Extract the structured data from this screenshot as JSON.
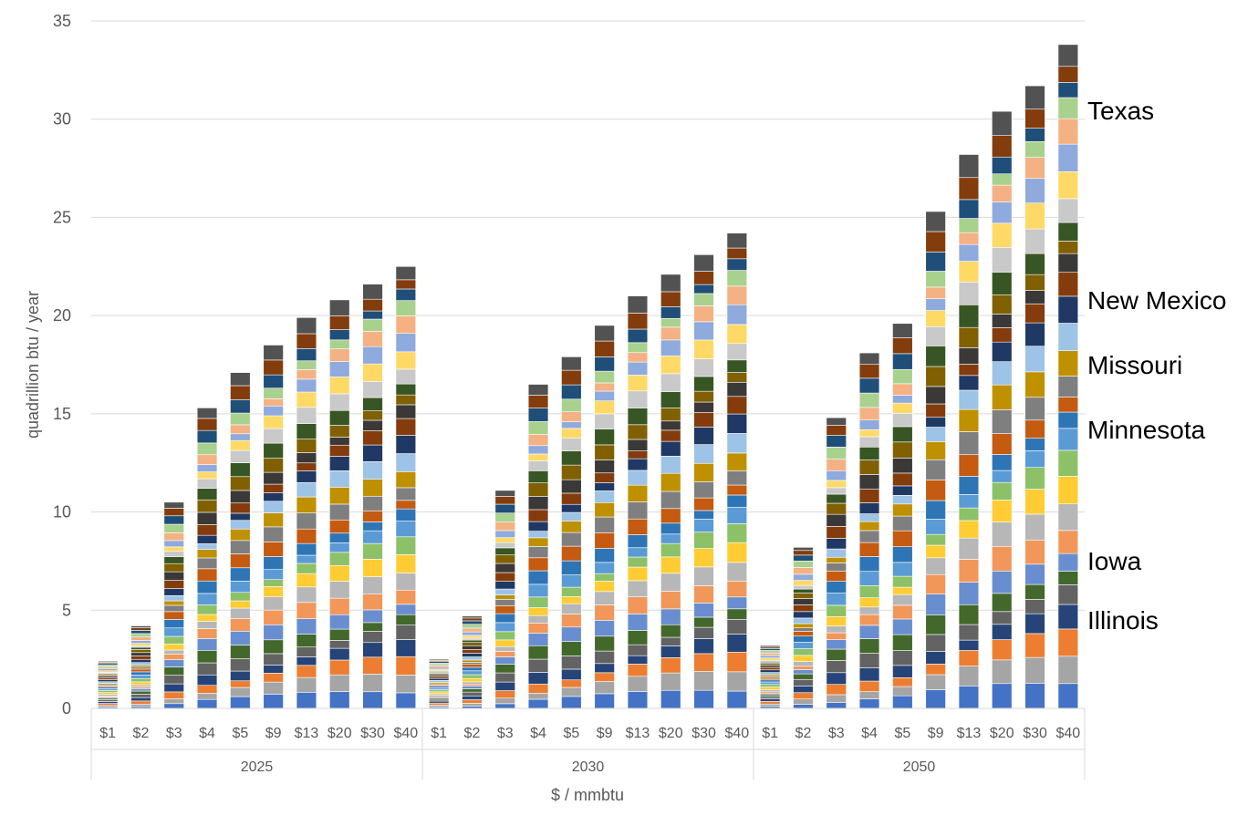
{
  "chart_data": {
    "type": "bar",
    "stacked": true,
    "ylabel": "quadrillion btu / year",
    "xlabel": "$ / mmbtu",
    "ylim": [
      0,
      35
    ],
    "yticks": [
      0,
      5,
      10,
      15,
      20,
      25,
      30,
      35
    ],
    "grid": "horizontal",
    "groups": [
      {
        "label": "2025",
        "categories": [
          "$1",
          "$2",
          "$3",
          "$4",
          "$5",
          "$9",
          "$13",
          "$20",
          "$30",
          "$40"
        ],
        "totals": [
          2.4,
          4.2,
          10.5,
          15.3,
          17.1,
          18.5,
          19.9,
          20.8,
          21.6,
          22.5
        ]
      },
      {
        "label": "2030",
        "categories": [
          "$1",
          "$2",
          "$3",
          "$4",
          "$5",
          "$9",
          "$13",
          "$20",
          "$30",
          "$40"
        ],
        "totals": [
          2.5,
          4.7,
          11.1,
          16.5,
          17.9,
          19.5,
          21.0,
          22.1,
          23.1,
          24.2
        ]
      },
      {
        "label": "2050",
        "categories": [
          "$1",
          "$2",
          "$3",
          "$4",
          "$5",
          "$9",
          "$13",
          "$20",
          "$30",
          "$40"
        ],
        "totals": [
          3.2,
          8.2,
          14.8,
          18.1,
          19.6,
          25.3,
          28.2,
          30.4,
          31.7,
          33.8
        ]
      }
    ],
    "segment_palette": [
      "#4472c4",
      "#a5a5a5",
      "#ed7d31",
      "#264478",
      "#636363",
      "#43682b",
      "#698ed0",
      "#f1975a",
      "#b7b7b7",
      "#ffcd33",
      "#8cc168",
      "#5b9bd5",
      "#2e75b6",
      "#c55a11",
      "#7f7f7f",
      "#bf9000",
      "#9dc3e6",
      "#203864",
      "#843c0c",
      "#3b3838",
      "#806000",
      "#375623",
      "#c9c9c9",
      "#ffd966",
      "#8faadc",
      "#f4b183",
      "#a9d18e",
      "#1f4e79",
      "#833c0b",
      "#525252"
    ],
    "annotations": [
      "Texas",
      "New Mexico",
      "Missouri",
      "Minnesota",
      "Iowa",
      "Illinois"
    ]
  }
}
